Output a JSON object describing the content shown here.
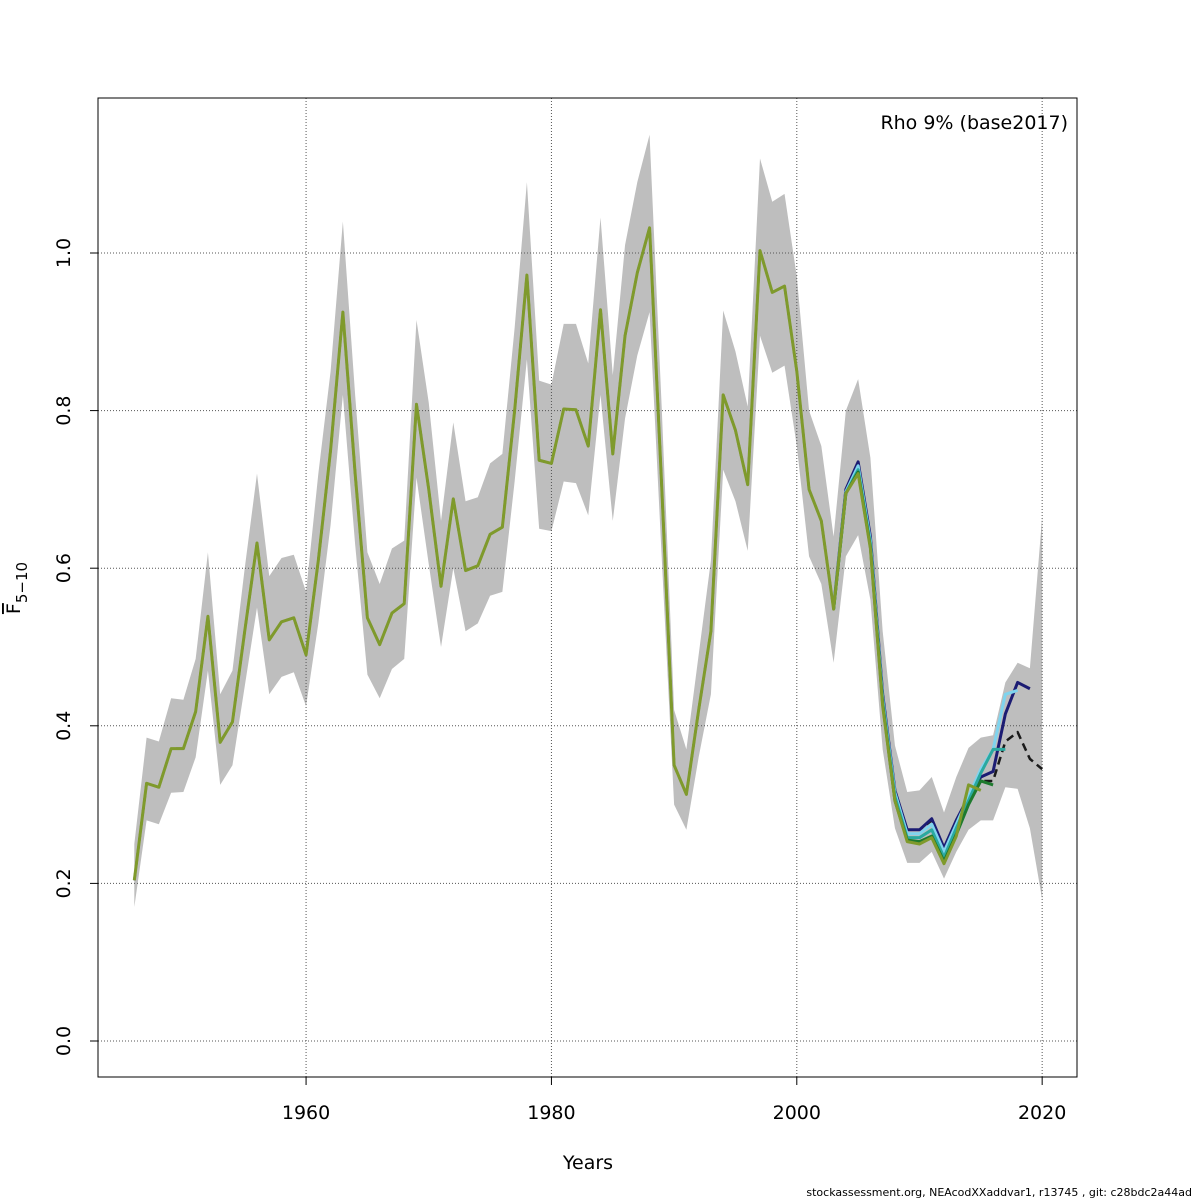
{
  "chart_data": {
    "type": "line",
    "annotation": "Rho 9% (base2017)",
    "xlabel": "Years",
    "ylabel": {
      "text": "F",
      "subscript": "5−10"
    },
    "footer": "stockassessment.org, NEAcodXXaddvar1, r13745 , git: c28bdc2a44ad",
    "xlim": [
      1943.04,
      2022.84
    ],
    "ylim": [
      -0.0457,
      1.1967
    ],
    "xticks": [
      1960,
      1980,
      2000,
      2020
    ],
    "yticks": [
      {
        "value": 0,
        "label": "0.0"
      },
      0.2,
      0.4,
      0.6,
      0.8,
      {
        "value": 1,
        "label": "1.0"
      }
    ],
    "grid": true,
    "x": [
      1946,
      1947,
      1948,
      1949,
      1950,
      1951,
      1952,
      1953,
      1954,
      1955,
      1956,
      1957,
      1958,
      1959,
      1960,
      1961,
      1962,
      1963,
      1964,
      1965,
      1966,
      1967,
      1968,
      1969,
      1970,
      1971,
      1972,
      1973,
      1974,
      1975,
      1976,
      1977,
      1978,
      1979,
      1980,
      1981,
      1982,
      1983,
      1984,
      1985,
      1986,
      1987,
      1988,
      1989,
      1990,
      1991,
      1992,
      1993,
      1994,
      1995,
      1996,
      1997,
      1998,
      1999,
      2000,
      2001,
      2002,
      2003,
      2004,
      2005,
      2006,
      2007,
      2008,
      2009,
      2010,
      2011,
      2012,
      2013,
      2014,
      2015,
      2016,
      2017,
      2018,
      2019,
      2020
    ],
    "band": {
      "color": "#bebebe",
      "upper": [
        0.25,
        0.385,
        0.38,
        0.435,
        0.433,
        0.485,
        0.62,
        0.44,
        0.47,
        0.6,
        0.72,
        0.59,
        0.613,
        0.617,
        0.57,
        0.72,
        0.85,
        1.04,
        0.82,
        0.62,
        0.58,
        0.625,
        0.635,
        0.915,
        0.81,
        0.66,
        0.785,
        0.685,
        0.69,
        0.733,
        0.745,
        0.905,
        1.09,
        0.838,
        0.833,
        0.91,
        0.91,
        0.86,
        1.045,
        0.845,
        1.01,
        1.09,
        1.15,
        0.8,
        0.42,
        0.37,
        0.49,
        0.61,
        0.927,
        0.875,
        0.805,
        1.12,
        1.065,
        1.075,
        0.97,
        0.8,
        0.755,
        0.64,
        0.8,
        0.84,
        0.74,
        0.52,
        0.375,
        0.316,
        0.318,
        0.335,
        0.29,
        0.335,
        0.372,
        0.385,
        0.388,
        0.455,
        0.48,
        0.473,
        0.665
      ],
      "lower": [
        0.17,
        0.28,
        0.275,
        0.315,
        0.316,
        0.36,
        0.47,
        0.325,
        0.35,
        0.45,
        0.55,
        0.44,
        0.462,
        0.468,
        0.425,
        0.53,
        0.655,
        0.82,
        0.63,
        0.465,
        0.435,
        0.472,
        0.485,
        0.715,
        0.605,
        0.5,
        0.6,
        0.52,
        0.53,
        0.565,
        0.57,
        0.71,
        0.865,
        0.65,
        0.647,
        0.71,
        0.708,
        0.667,
        0.82,
        0.66,
        0.79,
        0.87,
        0.925,
        0.61,
        0.3,
        0.268,
        0.36,
        0.44,
        0.725,
        0.685,
        0.622,
        0.895,
        0.848,
        0.857,
        0.755,
        0.615,
        0.58,
        0.48,
        0.615,
        0.642,
        0.56,
        0.37,
        0.27,
        0.226,
        0.226,
        0.24,
        0.206,
        0.24,
        0.268,
        0.28,
        0.28,
        0.322,
        0.32,
        0.27,
        0.18
      ]
    },
    "series": [
      {
        "color": "#1a1a1a",
        "dashed": true,
        "values": [
          0.204,
          0.327,
          0.322,
          0.371,
          0.371,
          0.418,
          0.539,
          0.379,
          0.405,
          0.52,
          0.632,
          0.509,
          0.532,
          0.537,
          0.49,
          0.61,
          0.75,
          0.925,
          0.72,
          0.537,
          0.503,
          0.543,
          0.555,
          0.808,
          0.7,
          0.577,
          0.688,
          0.597,
          0.603,
          0.643,
          0.652,
          0.8,
          0.972,
          0.737,
          0.733,
          0.802,
          0.801,
          0.755,
          0.928,
          0.745,
          0.895,
          0.975,
          1.032,
          0.7,
          0.35,
          0.313,
          0.42,
          0.52,
          0.82,
          0.775,
          0.706,
          1.003,
          0.95,
          0.958,
          0.85,
          0.7,
          0.66,
          0.548,
          0.7,
          0.735,
          0.64,
          0.44,
          0.318,
          0.268,
          0.268,
          0.28,
          0.245,
          0.28,
          0.31,
          0.33,
          0.33,
          0.38,
          0.392,
          0.358,
          0.345
        ]
      },
      {
        "color": "#1c1c73",
        "x": [
          2003,
          2004,
          2005,
          2006,
          2007,
          2008,
          2009,
          2010,
          2011,
          2012,
          2013,
          2014,
          2015,
          2016,
          2017,
          2018,
          2019
        ],
        "values": [
          0.55,
          0.7,
          0.735,
          0.64,
          0.44,
          0.318,
          0.268,
          0.268,
          0.282,
          0.245,
          0.28,
          0.31,
          0.335,
          0.342,
          0.415,
          0.455,
          0.447
        ]
      },
      {
        "color": "#7fd4ee",
        "x": [
          2003,
          2004,
          2005,
          2006,
          2007,
          2008,
          2009,
          2010,
          2011,
          2012,
          2013,
          2014,
          2015,
          2016,
          2017,
          2018
        ],
        "values": [
          0.549,
          0.697,
          0.73,
          0.635,
          0.435,
          0.315,
          0.263,
          0.263,
          0.275,
          0.24,
          0.275,
          0.31,
          0.345,
          0.37,
          0.44,
          0.445
        ]
      },
      {
        "color": "#2aa9a0",
        "x": [
          2003,
          2004,
          2005,
          2006,
          2007,
          2008,
          2009,
          2010,
          2011,
          2012,
          2013,
          2014,
          2015,
          2016,
          2017
        ],
        "values": [
          0.548,
          0.695,
          0.725,
          0.63,
          0.43,
          0.31,
          0.258,
          0.258,
          0.268,
          0.233,
          0.27,
          0.305,
          0.34,
          0.37,
          0.37
        ]
      },
      {
        "color": "#1e7a2e",
        "x": [
          2003,
          2004,
          2005,
          2006,
          2007,
          2008,
          2009,
          2010,
          2011,
          2012,
          2013,
          2014,
          2015,
          2016
        ],
        "values": [
          0.548,
          0.695,
          0.722,
          0.627,
          0.428,
          0.305,
          0.255,
          0.253,
          0.26,
          0.228,
          0.262,
          0.3,
          0.33,
          0.325
        ]
      },
      {
        "color": "#7f9a2c",
        "values": [
          0.204,
          0.327,
          0.322,
          0.371,
          0.371,
          0.418,
          0.539,
          0.379,
          0.405,
          0.52,
          0.632,
          0.509,
          0.532,
          0.537,
          0.49,
          0.61,
          0.75,
          0.925,
          0.72,
          0.537,
          0.503,
          0.543,
          0.555,
          0.808,
          0.7,
          0.577,
          0.688,
          0.597,
          0.603,
          0.643,
          0.652,
          0.8,
          0.972,
          0.737,
          0.733,
          0.802,
          0.801,
          0.755,
          0.928,
          0.745,
          0.895,
          0.975,
          1.032,
          0.7,
          0.35,
          0.313,
          0.42,
          0.52,
          0.82,
          0.775,
          0.706,
          1.003,
          0.95,
          0.958,
          0.85,
          0.7,
          0.66,
          0.548,
          0.695,
          0.72,
          0.625,
          0.425,
          0.305,
          0.253,
          0.25,
          0.258,
          0.225,
          0.26,
          0.325,
          0.318,
          null,
          null,
          null,
          null,
          null
        ]
      }
    ]
  }
}
